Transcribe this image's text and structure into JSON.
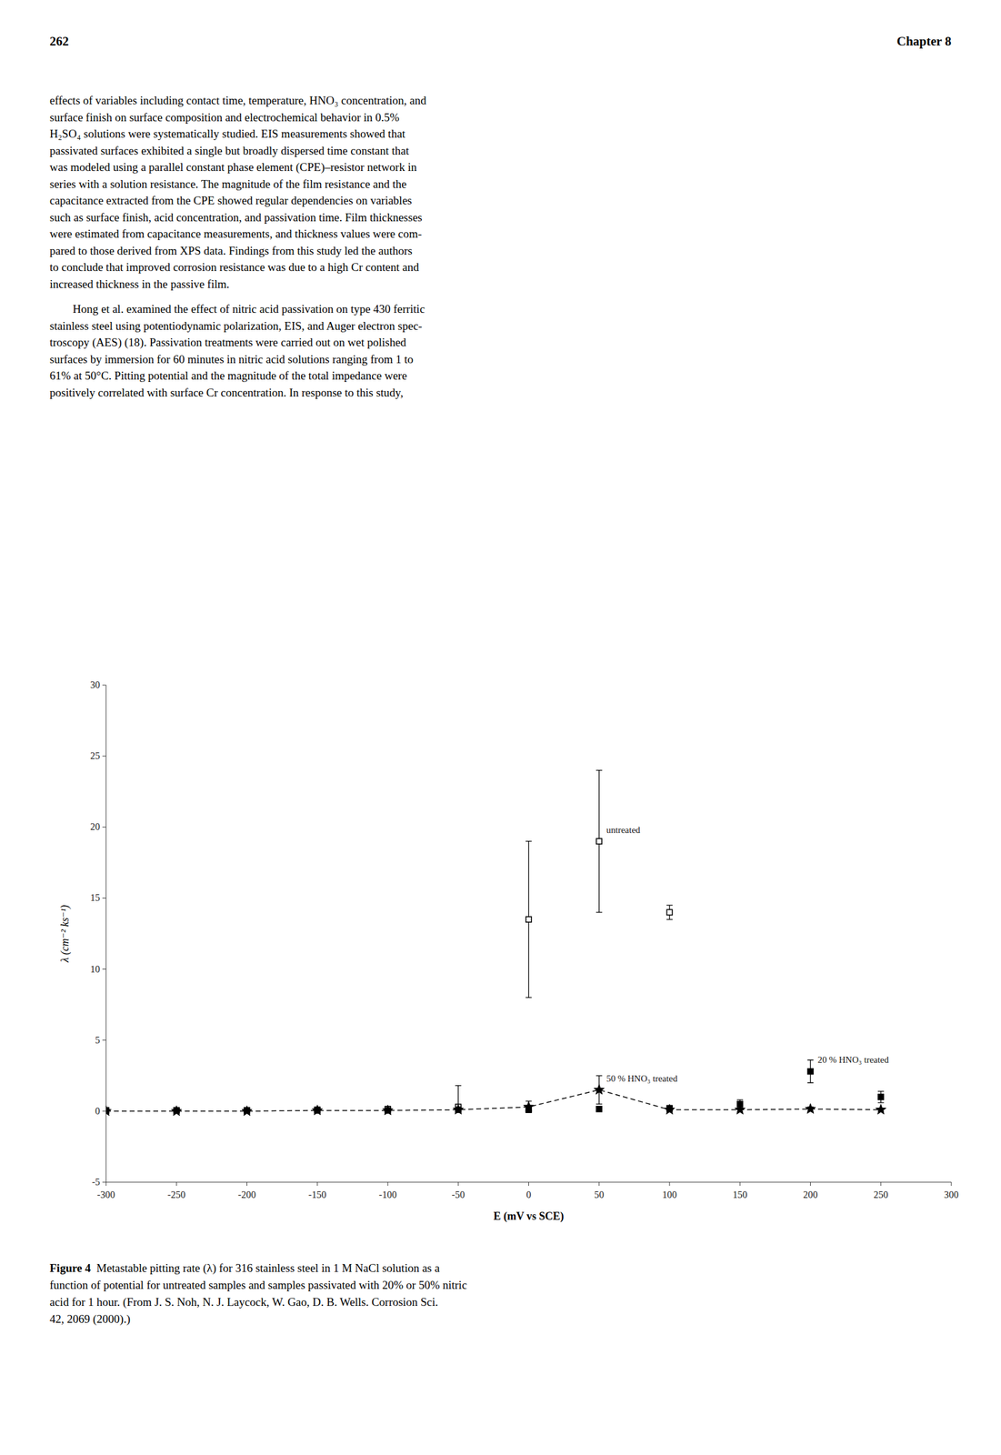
{
  "page_num": "262",
  "chapter": "Chapter 8",
  "body_text_lines": [
    "effects of variables including contact time, temperature, HNO₃ concentration, and",
    "surface finish on surface composition and electrochemical behavior in 0.5%",
    "H₂SO₄ solutions were systematically studied. EIS measurements showed that",
    "passivated surfaces exhibited a single but broadly dispersed time constant that",
    "was modeled using a parallel constant phase element (CPE)–resistor network in",
    "series with a solution resistance. The magnitude of the film resistance and the",
    "capacitance extracted from the CPE showed regular dependencies on variables",
    "such as surface finish, acid concentration, and passivation time. Film thicknesses",
    "were estimated from capacitance measurements, and thickness values were com-",
    "pared to those derived from XPS data. Findings from this study led the authors",
    "to conclude that improved corrosion resistance was due to a high Cr content and",
    "increased thickness in the passive film."
  ],
  "body_text_lines2": [
    "        Hong et al. examined the effect of nitric acid passivation on type 430 ferritic",
    "stainless steel using potentiodynamic polarization, EIS, and Auger electron spec-",
    "troscopy (AES) (18). Passivation treatments were carried out on wet polished",
    "surfaces by immersion for 60 minutes in nitric acid solutions ranging from 1 to",
    "61% at 50°C. Pitting potential and the magnitude of the total impedance were",
    "positively correlated with surface Cr concentration. In response to this study,"
  ],
  "caption_bold": "Figure 4",
  "caption_lines": [
    "  Metastable pitting rate (λ) for 316 stainless steel in 1 M NaCl solution as a",
    "function of potential for untreated samples and samples passivated with 20% or 50% nitric",
    "acid for 1 hour. (From J. S. Noh, N. J. Laycock, W. Gao, D. B. Wells. Corrosion Sci.",
    "42, 2069 (2000).)"
  ],
  "chart_data": {
    "type": "scatter",
    "xlabel": "E (mV vs SCE)",
    "ylabel": "λ (cm⁻² ks⁻¹)",
    "xlim": [
      -300,
      300
    ],
    "ylim": [
      -5,
      30
    ],
    "xticks": [
      -300,
      -250,
      -200,
      -150,
      -100,
      -50,
      0,
      50,
      100,
      150,
      200,
      250,
      300
    ],
    "yticks": [
      -5,
      0,
      5,
      10,
      15,
      20,
      25,
      30
    ],
    "grid": false,
    "series": [
      {
        "name": "untreated",
        "color": "#000000",
        "marker": "open-square",
        "line_style": "none",
        "x": [
          -300,
          -250,
          -200,
          -150,
          -100,
          -50,
          0,
          50,
          100
        ],
        "values": [
          0.05,
          0.05,
          0.05,
          0.1,
          0.15,
          0.3,
          13.5,
          19.0,
          14.0
        ],
        "yerr_lo": [
          0.05,
          0.05,
          0.05,
          0.1,
          0.1,
          0.25,
          5.5,
          5.0,
          0.5
        ],
        "yerr_hi": [
          0.05,
          0.05,
          0.05,
          0.1,
          0.1,
          1.5,
          5.5,
          5.0,
          0.5
        ]
      },
      {
        "name": "20 % HNO₃ treated",
        "color": "#000000",
        "marker": "square",
        "line_style": "none",
        "x": [
          -300,
          -250,
          -200,
          -150,
          -100,
          -50,
          0,
          50,
          100,
          150,
          200,
          250
        ],
        "values": [
          0.05,
          0.05,
          0.05,
          0.05,
          0.05,
          0.1,
          0.1,
          0.15,
          0.2,
          0.5,
          2.8,
          1.0
        ],
        "yerr": [
          0.05,
          0.05,
          0.05,
          0.05,
          0.05,
          0.1,
          0.1,
          0.15,
          0.2,
          0.3,
          0.8,
          0.4
        ]
      },
      {
        "name": "50 % HNO₃ treated",
        "color": "#000000",
        "marker": "star",
        "line_style": "dashed",
        "x": [
          -300,
          -250,
          -200,
          -150,
          -100,
          -50,
          0,
          50,
          100,
          150,
          200,
          250
        ],
        "values": [
          0.0,
          0.0,
          0.0,
          0.05,
          0.05,
          0.1,
          0.3,
          1.5,
          0.1,
          0.1,
          0.15,
          0.1
        ],
        "yerr": [
          0.05,
          0.05,
          0.05,
          0.05,
          0.05,
          0.1,
          0.4,
          1.0,
          0.15,
          0.15,
          0.15,
          0.1
        ]
      }
    ]
  }
}
